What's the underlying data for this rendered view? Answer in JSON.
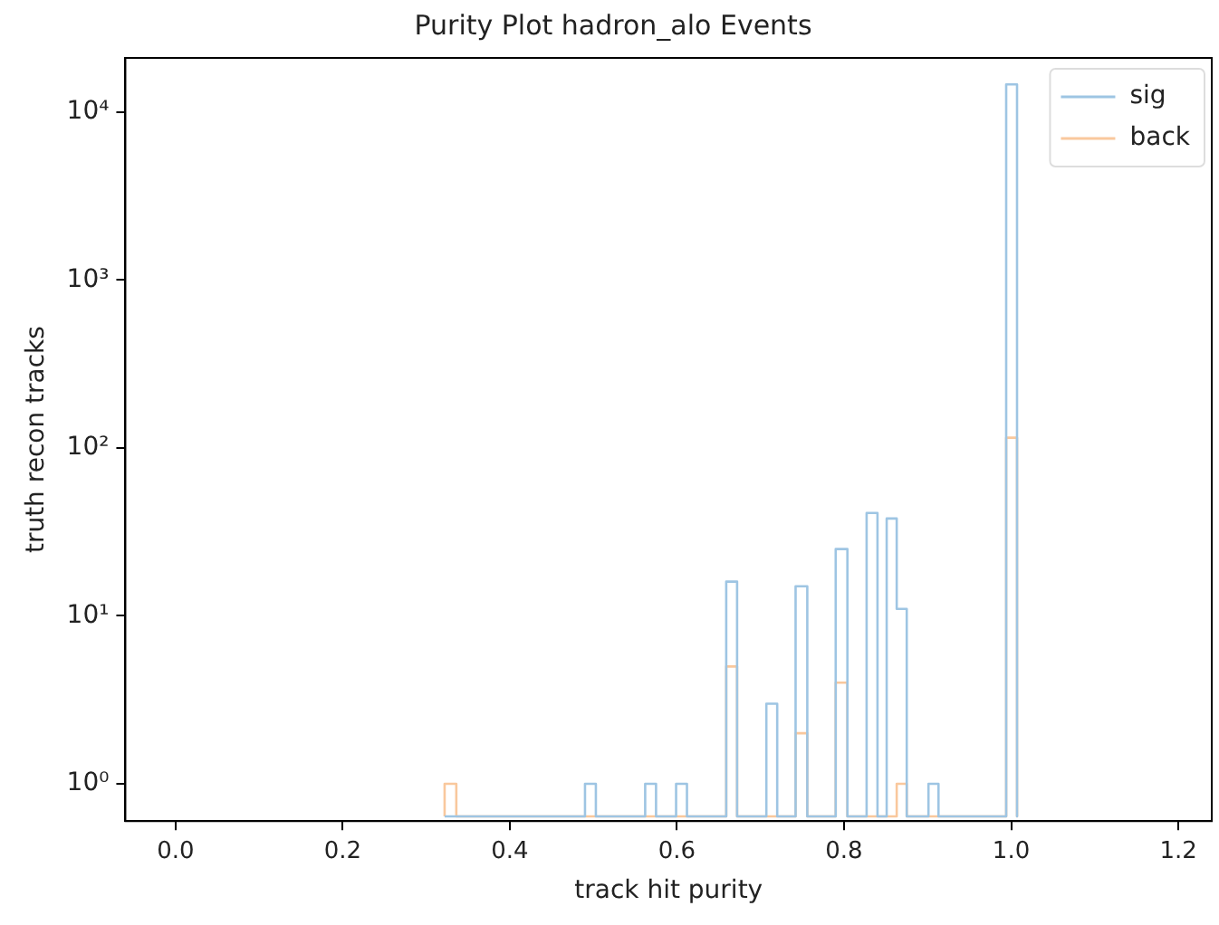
{
  "chart_data": {
    "type": "histogram",
    "title": "Purity Plot hadron_alo Events",
    "xlabel": "track hit purity",
    "ylabel": "truth recon tracks",
    "bins": [
      0.322,
      0.336,
      0.49,
      0.503,
      0.562,
      0.575,
      0.599,
      0.612,
      0.659,
      0.672,
      0.707,
      0.72,
      0.742,
      0.756,
      0.79,
      0.804,
      0.827,
      0.84,
      0.851,
      0.863,
      0.875,
      0.901,
      0.913,
      0.994,
      1.007
    ],
    "series": [
      {
        "name": "sig",
        "color": "#9ec5e3",
        "values": [
          null,
          null,
          1,
          null,
          1,
          null,
          1,
          null,
          16,
          null,
          3,
          null,
          15,
          null,
          25,
          null,
          41,
          null,
          38,
          11,
          null,
          1,
          null,
          14600
        ]
      },
      {
        "name": "back",
        "color": "#f9c89d",
        "values": [
          1,
          null,
          null,
          null,
          null,
          null,
          null,
          null,
          5,
          null,
          null,
          null,
          2,
          null,
          4,
          null,
          null,
          null,
          null,
          1,
          null,
          null,
          null,
          115
        ]
      }
    ],
    "log": "y",
    "grid": false,
    "legend": "top right",
    "line_style": "solid",
    "xlim": [
      -0.06,
      1.24
    ],
    "ylim": [
      0.64,
      21000
    ],
    "xticks": [
      {
        "value": 0,
        "label": "0.0"
      },
      {
        "value": 0.2,
        "label": "0.2"
      },
      {
        "value": 0.4,
        "label": "0.4"
      },
      {
        "value": 0.6,
        "label": "0.6"
      },
      {
        "value": 0.8,
        "label": "0.8"
      },
      {
        "value": 1,
        "label": "1.0"
      },
      {
        "value": 1.2,
        "label": "1.2"
      }
    ],
    "yticks": [
      {
        "value": 1,
        "label": "10⁰"
      },
      {
        "value": 10,
        "label": "10¹"
      },
      {
        "value": 100,
        "label": "10²"
      },
      {
        "value": 1000,
        "label": "10³"
      },
      {
        "value": 10000,
        "label": "10⁴"
      }
    ]
  }
}
